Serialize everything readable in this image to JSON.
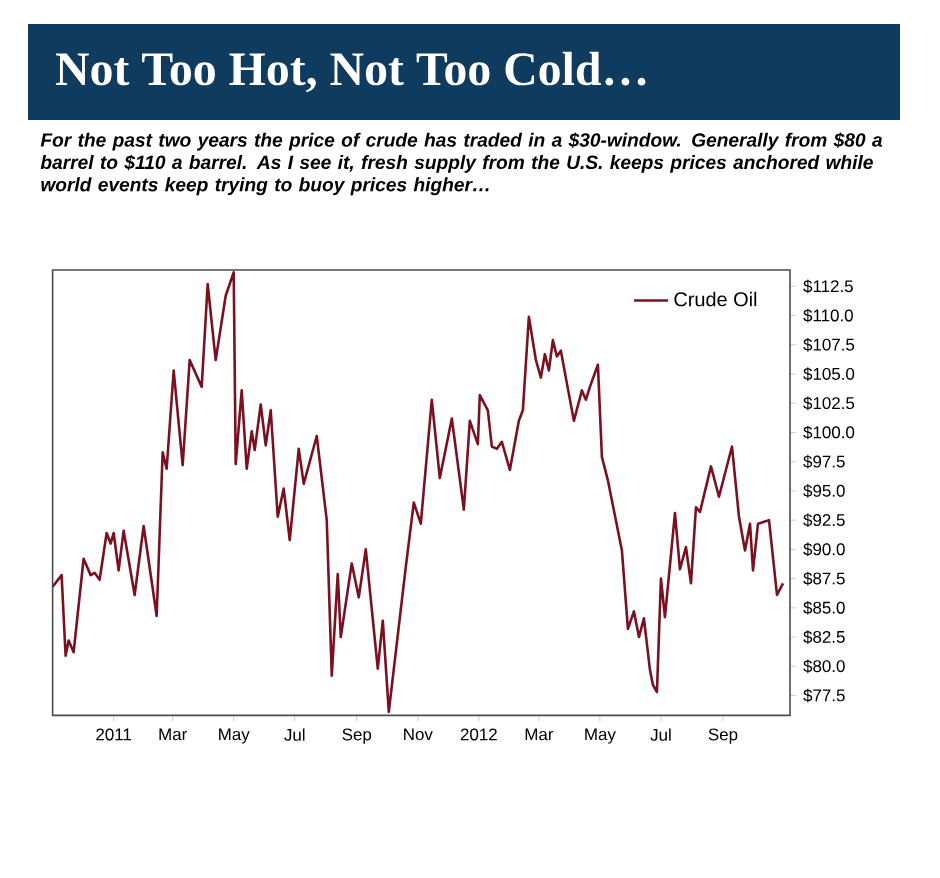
{
  "chart_data": {
    "type": "line",
    "title": "Not Too Hot, Not Too Cold…",
    "subtitle": "For the past two years the price of crude has traded in a $30-window. Generally from $80 a barrel to $110 a barrel. As I see it, fresh supply from the U.S. keeps prices anchored while world events keep trying to buoy prices higher…",
    "x": [
      "2010-11-01",
      "2010-11-10",
      "2010-11-14",
      "2010-11-17",
      "2010-11-22",
      "2010-12-02",
      "2010-12-09",
      "2010-12-13",
      "2010-12-18",
      "2010-12-25",
      "2010-12-29",
      "2011-01-01",
      "2011-01-06",
      "2011-01-11",
      "2011-01-22",
      "2011-01-31",
      "2011-02-13",
      "2011-02-19",
      "2011-02-23",
      "2011-03-02",
      "2011-03-11",
      "2011-03-18",
      "2011-03-30",
      "2011-04-05",
      "2011-04-13",
      "2011-04-23",
      "2011-05-01",
      "2011-05-03",
      "2011-05-09",
      "2011-05-14",
      "2011-05-19",
      "2011-05-22",
      "2011-05-28",
      "2011-06-02",
      "2011-06-07",
      "2011-06-14",
      "2011-06-20",
      "2011-06-26",
      "2011-07-05",
      "2011-07-10",
      "2011-07-23",
      "2011-08-02",
      "2011-08-07",
      "2011-08-13",
      "2011-08-16",
      "2011-08-27",
      "2011-09-03",
      "2011-09-10",
      "2011-09-22",
      "2011-09-27",
      "2011-10-03",
      "2011-10-20",
      "2011-10-28",
      "2011-11-04",
      "2011-11-15",
      "2011-11-23",
      "2011-12-05",
      "2011-12-17",
      "2011-12-23",
      "2011-12-31",
      "2012-01-02",
      "2012-01-10",
      "2012-01-14",
      "2012-01-19",
      "2012-01-24",
      "2012-02-01",
      "2012-02-10",
      "2012-02-14",
      "2012-02-20",
      "2012-02-27",
      "2012-03-03",
      "2012-03-07",
      "2012-03-11",
      "2012-03-15",
      "2012-03-19",
      "2012-03-23",
      "2012-03-29",
      "2012-04-05",
      "2012-04-13",
      "2012-04-17",
      "2012-04-21",
      "2012-04-29",
      "2012-05-03",
      "2012-05-09",
      "2012-05-23",
      "2012-05-29",
      "2012-06-04",
      "2012-06-09",
      "2012-06-14",
      "2012-06-20",
      "2012-06-23",
      "2012-06-27",
      "2012-07-01",
      "2012-07-05",
      "2012-07-15",
      "2012-07-20",
      "2012-07-26",
      "2012-07-31",
      "2012-08-05",
      "2012-08-09",
      "2012-08-20",
      "2012-08-28",
      "2012-09-10",
      "2012-09-17",
      "2012-09-23",
      "2012-09-28",
      "2012-10-01",
      "2012-10-06",
      "2012-10-17",
      "2012-10-25",
      "2012-10-31"
    ],
    "series": [
      {
        "name": "Crude Oil",
        "color": "#7b1020",
        "values": [
          86.8,
          87.8,
          80.9,
          82.2,
          81.2,
          89.2,
          87.8,
          88.0,
          87.4,
          91.4,
          90.5,
          91.4,
          88.2,
          91.6,
          86.1,
          92.0,
          84.3,
          98.3,
          96.9,
          105.3,
          97.2,
          106.2,
          103.9,
          112.7,
          106.2,
          111.7,
          113.7,
          97.3,
          103.6,
          96.9,
          100.1,
          98.5,
          102.4,
          98.9,
          101.9,
          92.8,
          95.2,
          90.8,
          98.6,
          95.6,
          99.7,
          92.5,
          79.2,
          87.9,
          82.5,
          88.8,
          85.9,
          90.0,
          79.8,
          83.9,
          76.1,
          88.5,
          94.0,
          92.2,
          102.8,
          96.1,
          101.2,
          93.4,
          101.0,
          99.0,
          103.2,
          101.9,
          98.8,
          98.6,
          99.2,
          96.8,
          101.0,
          101.9,
          109.9,
          106.2,
          104.7,
          106.7,
          105.3,
          107.9,
          106.5,
          107.0,
          104.2,
          101.0,
          103.6,
          102.8,
          103.9,
          105.8,
          97.9,
          95.9,
          89.9,
          83.2,
          84.7,
          82.5,
          84.1,
          79.7,
          78.4,
          77.8,
          87.5,
          84.2,
          93.1,
          88.3,
          90.2,
          87.1,
          93.6,
          93.2,
          97.1,
          94.5,
          98.8,
          92.8,
          89.9,
          92.2,
          88.2,
          92.2,
          92.5,
          86.1,
          87.1
        ]
      }
    ],
    "xlim": [
      "2010-11-01",
      "2012-11-07"
    ],
    "xticks": [
      {
        "value": "2011-01-01",
        "label": "2011"
      },
      {
        "value": "2011-03-01",
        "label": "Mar"
      },
      {
        "value": "2011-05-01",
        "label": "May"
      },
      {
        "value": "2011-07-01",
        "label": "Jul"
      },
      {
        "value": "2011-09-01",
        "label": "Sep"
      },
      {
        "value": "2011-11-01",
        "label": "Nov"
      },
      {
        "value": "2012-01-01",
        "label": "2012"
      },
      {
        "value": "2012-03-01",
        "label": "Mar"
      },
      {
        "value": "2012-05-01",
        "label": "May"
      },
      {
        "value": "2012-07-01",
        "label": "Jul"
      },
      {
        "value": "2012-09-01",
        "label": "Sep"
      }
    ],
    "ylim": [
      75.8,
      113.9
    ],
    "yticks": [
      {
        "value": 77.5,
        "label": "$77.5"
      },
      {
        "value": 80,
        "label": "$80.0"
      },
      {
        "value": 82.5,
        "label": "$82.5"
      },
      {
        "value": 85,
        "label": "$85.0"
      },
      {
        "value": 87.5,
        "label": "$87.5"
      },
      {
        "value": 90,
        "label": "$90.0"
      },
      {
        "value": 92.5,
        "label": "$92.5"
      },
      {
        "value": 95,
        "label": "$95.0"
      },
      {
        "value": 97.5,
        "label": "$97.5"
      },
      {
        "value": 100,
        "label": "$100.0"
      },
      {
        "value": 102.5,
        "label": "$102.5"
      },
      {
        "value": 105,
        "label": "$105.0"
      },
      {
        "value": 107.5,
        "label": "$107.5"
      },
      {
        "value": 110,
        "label": "$110.0"
      },
      {
        "value": 112.5,
        "label": "$112.5"
      }
    ],
    "legend": "top right",
    "marker": "none"
  }
}
